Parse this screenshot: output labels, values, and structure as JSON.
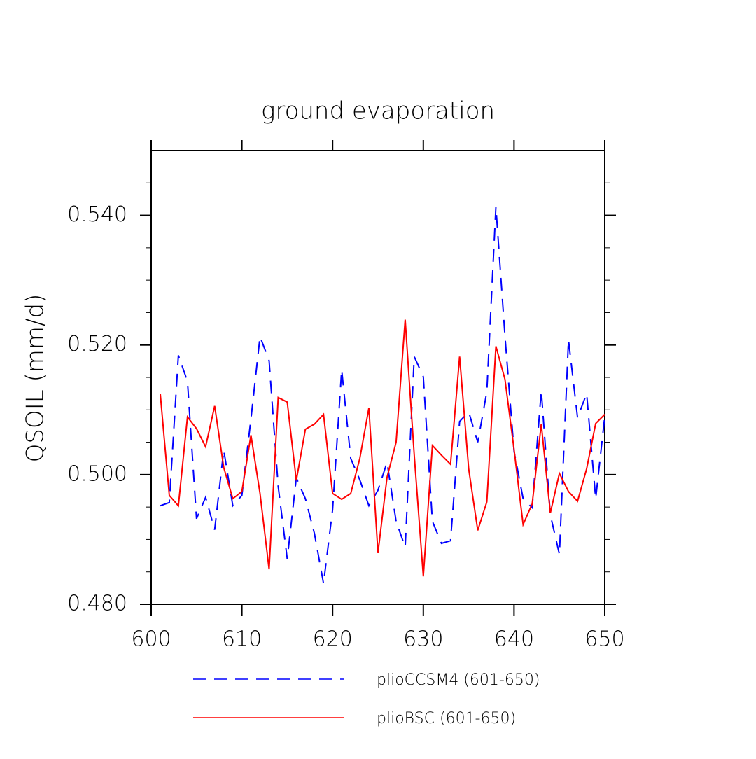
{
  "chart_data": {
    "type": "line",
    "title": "ground evaporation",
    "y_label": "QSOIL  (mm/d)",
    "x": [
      601,
      602,
      603,
      604,
      605,
      606,
      607,
      608,
      609,
      610,
      611,
      612,
      613,
      614,
      615,
      616,
      617,
      618,
      619,
      620,
      621,
      622,
      623,
      624,
      625,
      626,
      627,
      628,
      629,
      630,
      631,
      632,
      633,
      634,
      635,
      636,
      637,
      638,
      639,
      640,
      641,
      642,
      643,
      644,
      645,
      646,
      647,
      648,
      649,
      650
    ],
    "series": [
      {
        "name": "plioCCSM4 (601-650)",
        "color": "#0000ff",
        "dashed": true,
        "values": [
          0.4952,
          0.4957,
          0.5184,
          0.5144,
          0.4932,
          0.4965,
          0.4915,
          0.5038,
          0.4952,
          0.4968,
          0.5086,
          0.5213,
          0.5176,
          0.4982,
          0.487,
          0.4995,
          0.4963,
          0.4909,
          0.4832,
          0.4946,
          0.5162,
          0.5025,
          0.4992,
          0.4952,
          0.4976,
          0.5019,
          0.4928,
          0.4888,
          0.5182,
          0.5151,
          0.4928,
          0.4894,
          0.4898,
          0.5082,
          0.5097,
          0.505,
          0.5128,
          0.5413,
          0.5214,
          0.5036,
          0.4963,
          0.4949,
          0.513,
          0.4938,
          0.4877,
          0.5208,
          0.5088,
          0.5125,
          0.4963,
          0.509
        ]
      },
      {
        "name": "plioBSC (601-650)",
        "color": "#ff0000",
        "dashed": false,
        "values": [
          0.5125,
          0.4968,
          0.4952,
          0.5089,
          0.5071,
          0.5043,
          0.5106,
          0.5011,
          0.4963,
          0.4974,
          0.5061,
          0.4971,
          0.4854,
          0.5119,
          0.5112,
          0.4991,
          0.507,
          0.5078,
          0.5093,
          0.4971,
          0.4962,
          0.4971,
          0.5025,
          0.5103,
          0.4879,
          0.4996,
          0.505,
          0.5239,
          0.503,
          0.4843,
          0.5045,
          0.503,
          0.5016,
          0.5182,
          0.5009,
          0.4914,
          0.4958,
          0.5198,
          0.5147,
          0.5039,
          0.4923,
          0.4955,
          0.5078,
          0.4941,
          0.5002,
          0.4974,
          0.4959,
          0.5009,
          0.5079,
          0.5093
        ]
      }
    ],
    "xlim": [
      600,
      650
    ],
    "xticks": [
      600,
      610,
      620,
      630,
      640,
      650
    ],
    "ylim": [
      0.48,
      0.55
    ],
    "yticks": [
      {
        "value": 0.48,
        "label": "0.480"
      },
      {
        "value": 0.5,
        "label": "0.500"
      },
      {
        "value": 0.52,
        "label": "0.520"
      },
      {
        "value": 0.54,
        "label": "0.540"
      }
    ],
    "yminorticks": [
      0.485,
      0.49,
      0.495,
      0.505,
      0.51,
      0.515,
      0.525,
      0.53,
      0.535,
      0.545
    ],
    "legend": "bottom"
  }
}
